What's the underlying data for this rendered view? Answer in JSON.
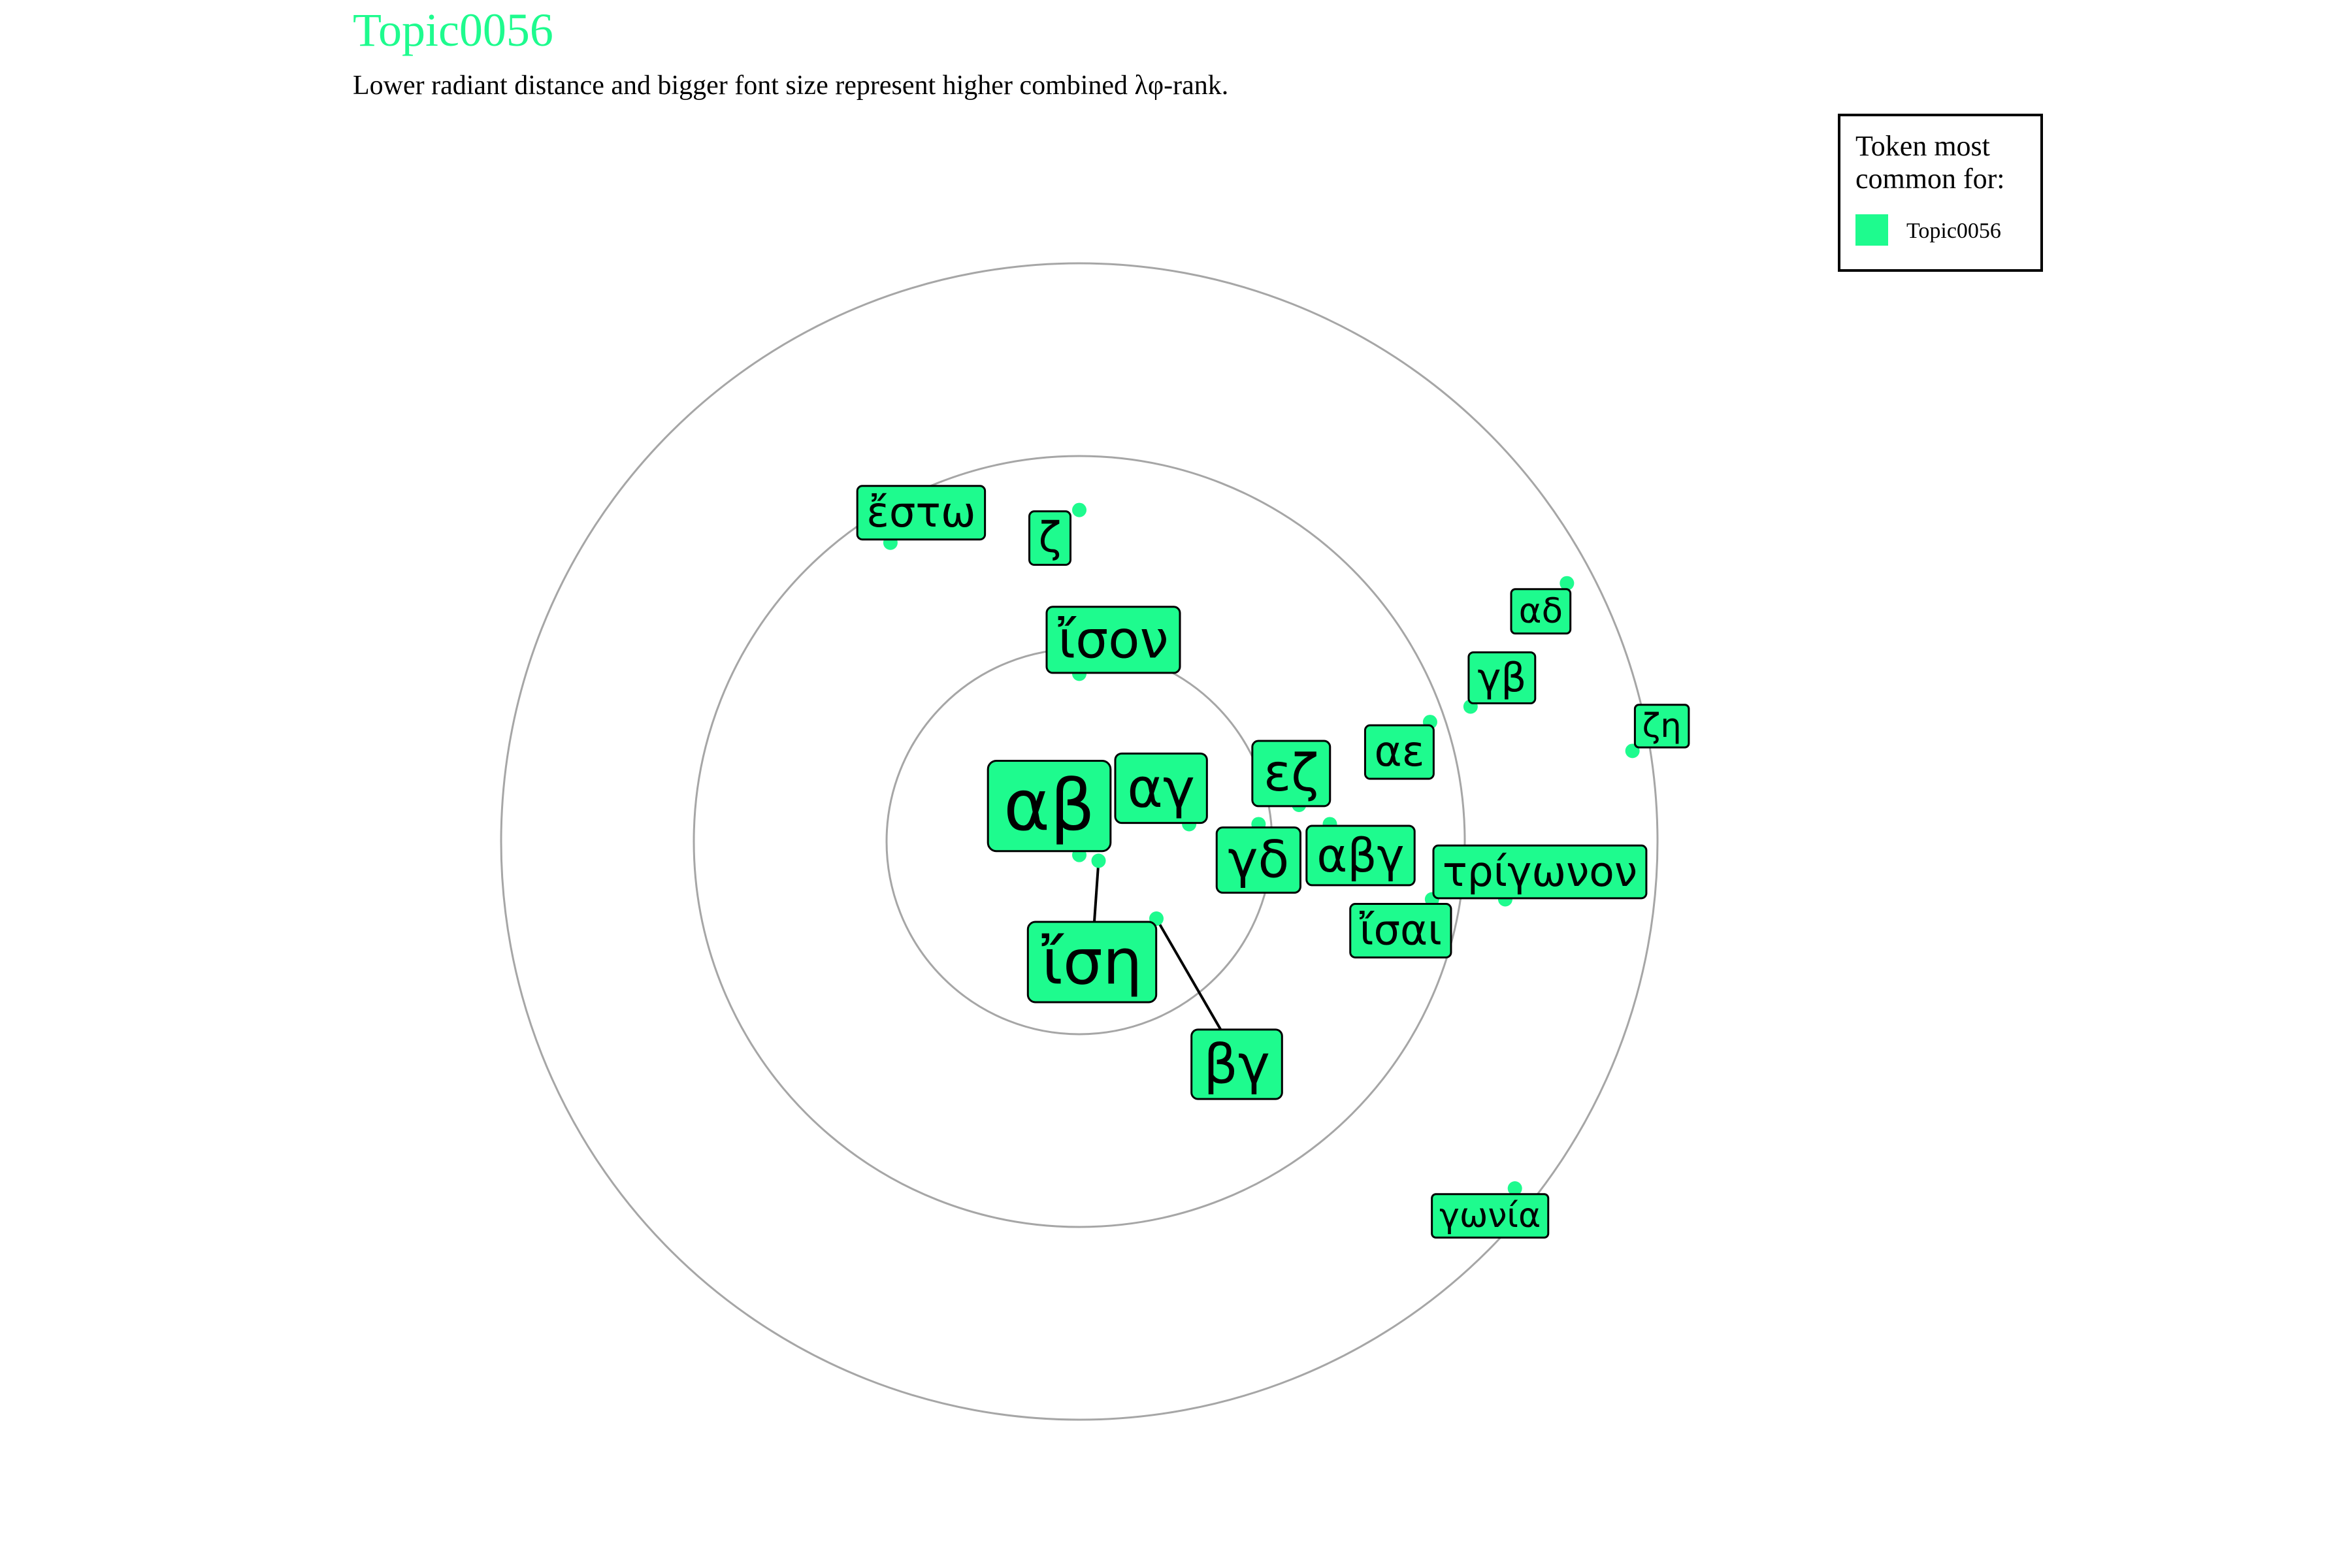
{
  "colors": {
    "accent": "#1efb8e"
  },
  "chart_data": {
    "type": "scatter",
    "title": "Topic0056",
    "subtitle": "Lower radiant distance and bigger font size represent higher combined λφ-rank.",
    "coordinate_system": "polar",
    "rings": [
      1,
      2,
      3
    ],
    "radial_max": 3,
    "grid": true,
    "legend": {
      "title": "Token most common for:",
      "entries": [
        "Topic0056"
      ],
      "position": "top-right"
    },
    "points": [
      {
        "label": "αβ",
        "x": 0.0,
        "y": -0.07,
        "size": 1.0
      },
      {
        "label": "ἴση",
        "x": 0.1,
        "y": -0.1,
        "size": 0.86
      },
      {
        "label": "ἴσον",
        "x": 0.0,
        "y": 0.87,
        "size": 0.66
      },
      {
        "label": "αγ",
        "x": 0.57,
        "y": 0.09,
        "size": 0.7
      },
      {
        "label": "βγ",
        "x": 0.4,
        "y": -0.4,
        "size": 0.7
      },
      {
        "label": "γδ",
        "x": 0.93,
        "y": 0.09,
        "size": 0.64
      },
      {
        "label": "εζ",
        "x": 1.14,
        "y": 0.19,
        "size": 0.64
      },
      {
        "label": "αβγ",
        "x": 1.3,
        "y": 0.09,
        "size": 0.56
      },
      {
        "label": "ἴσαι",
        "x": 1.83,
        "y": -0.3,
        "size": 0.48
      },
      {
        "label": "αε",
        "x": 1.82,
        "y": 0.62,
        "size": 0.48
      },
      {
        "label": "γβ",
        "x": 2.03,
        "y": 0.7,
        "size": 0.44
      },
      {
        "label": "αδ",
        "x": 2.53,
        "y": 1.34,
        "size": 0.34
      },
      {
        "label": "ζη",
        "x": 2.87,
        "y": 0.47,
        "size": 0.32
      },
      {
        "label": "τρίγωνον",
        "x": 2.21,
        "y": -0.3,
        "size": 0.46
      },
      {
        "label": "γωνία",
        "x": 2.26,
        "y": -1.8,
        "size": 0.33
      },
      {
        "label": "ἔστω",
        "x": -0.98,
        "y": 1.55,
        "size": 0.48
      },
      {
        "label": "ζ",
        "x": 0.0,
        "y": 1.72,
        "size": 0.48
      }
    ]
  }
}
